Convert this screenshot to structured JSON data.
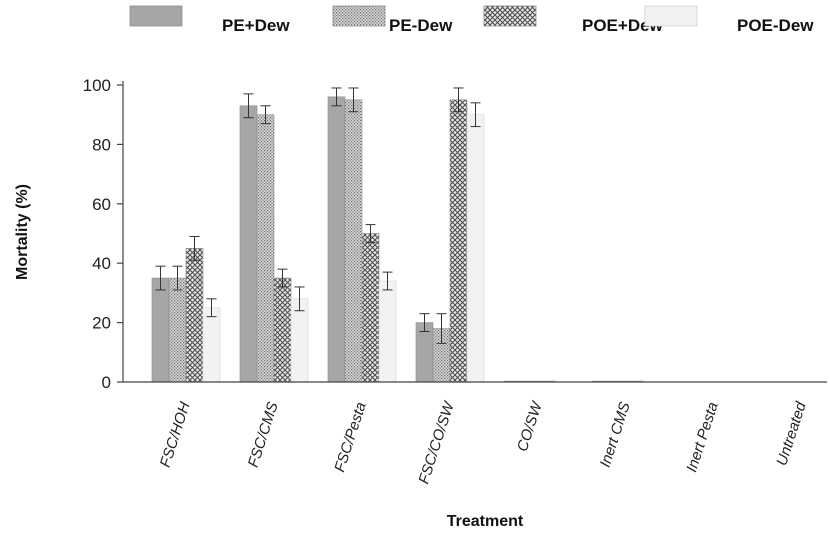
{
  "chart_data": {
    "type": "bar",
    "xlabel": "Treatment",
    "ylabel": "Mortality (%)",
    "ylim": [
      0,
      100
    ],
    "yticks": [
      0,
      20,
      40,
      60,
      80,
      100
    ],
    "categories": [
      "FSC/HOH",
      "FSC/CMS",
      "FSC/Pesta",
      "FSC/CO/SW",
      "CO/SW",
      "Inert CMS",
      "Inert Pesta",
      "Untreated"
    ],
    "legend_position": "top",
    "series": [
      {
        "name": "PE+Dew",
        "fill": "solid-gray",
        "color": "#a6a6a6",
        "values": [
          35,
          93,
          96,
          20,
          0.3,
          0.3,
          0,
          0
        ],
        "errors": [
          4,
          4,
          3,
          3,
          0,
          0,
          0,
          0
        ]
      },
      {
        "name": "PE-Dew",
        "fill": "fine-dots",
        "color": "#bcbcbc",
        "values": [
          35,
          90,
          95,
          18,
          0.3,
          0.3,
          0,
          0
        ],
        "errors": [
          4,
          3,
          4,
          5,
          0,
          0,
          0,
          0
        ]
      },
      {
        "name": "POE+Dew",
        "fill": "crosshatch",
        "color": "#8a8a8a",
        "values": [
          45,
          35,
          50,
          95,
          0.3,
          0.3,
          0,
          0
        ],
        "errors": [
          4,
          3,
          3,
          4,
          0,
          0,
          0,
          0
        ]
      },
      {
        "name": "POE-Dew",
        "fill": "light",
        "color": "#f2f2f2",
        "values": [
          25,
          28,
          34,
          90,
          0,
          0,
          0,
          0
        ],
        "errors": [
          3,
          4,
          3,
          4,
          0,
          0,
          0,
          0
        ]
      }
    ]
  }
}
